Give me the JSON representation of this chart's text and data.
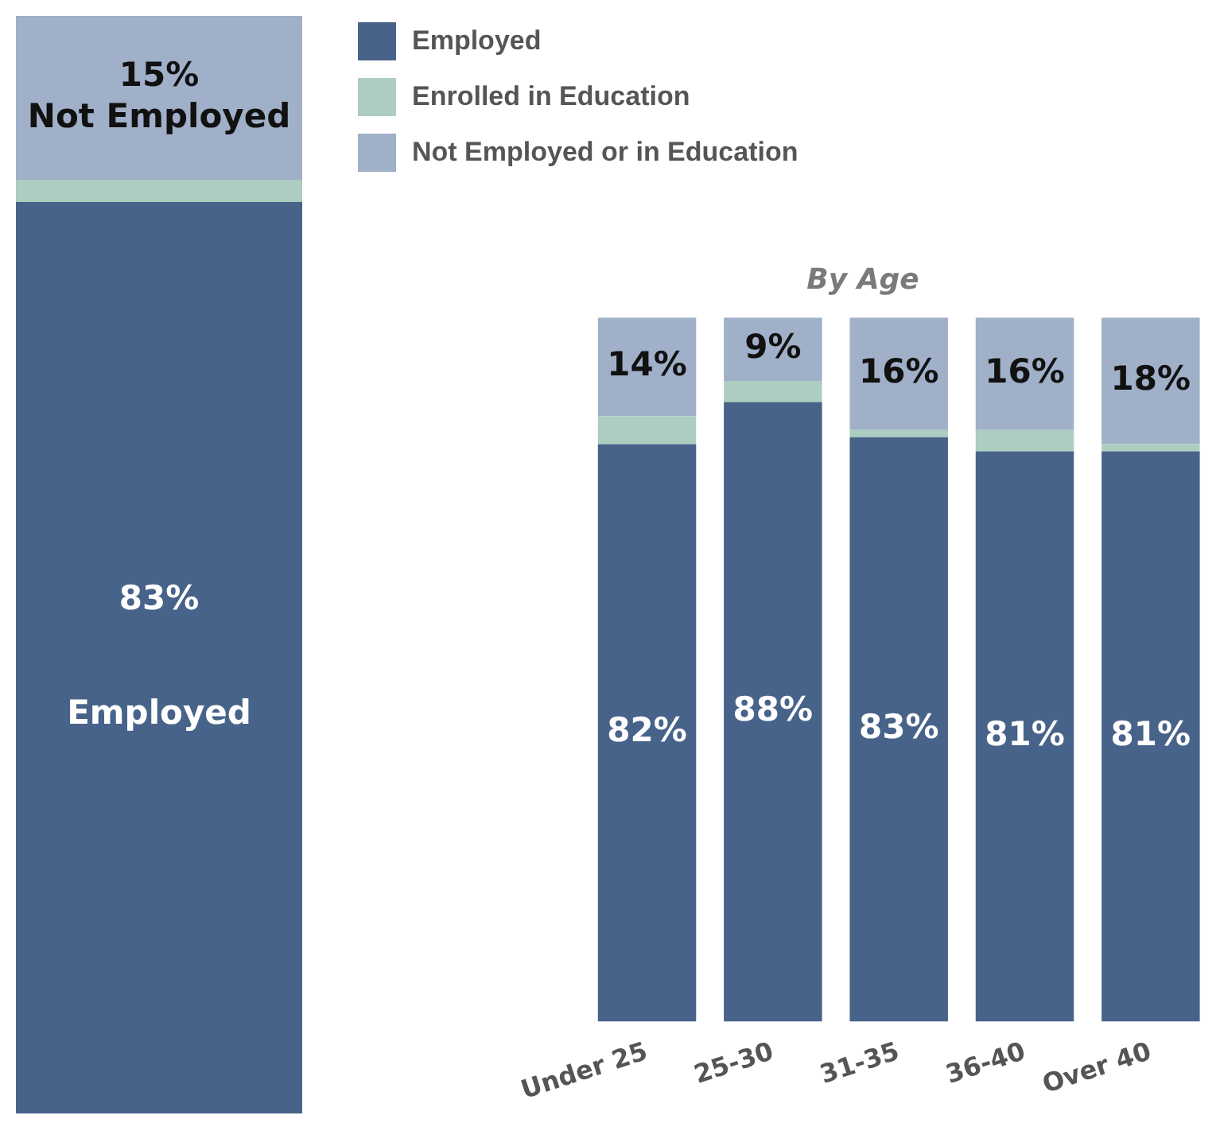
{
  "chart_data": [
    {
      "type": "bar",
      "stacked": true,
      "categories": [
        null
      ],
      "ylim": [
        0,
        100
      ],
      "tick_labels": false,
      "legend": "right",
      "series": [
        {
          "name": "Employed",
          "color": "#47638a",
          "values": [
            83
          ],
          "value_labels": [
            "83%\nEmployed"
          ]
        },
        {
          "name": "Enrolled in Education",
          "color": "#adcdc0",
          "values": [
            2
          ],
          "value_labels": [
            null
          ]
        },
        {
          "name": "Not Employed or in Education",
          "color": "#a0b0c8",
          "values": [
            15
          ],
          "value_labels": [
            "15%\nNot Employed"
          ]
        }
      ]
    },
    {
      "type": "bar",
      "stacked": true,
      "title": "By Age",
      "categories": [
        "Under 25",
        "25-30",
        "31-35",
        "36-40",
        "Over 40"
      ],
      "ylim": [
        0,
        100
      ],
      "tick_labels": "x",
      "series": [
        {
          "color": "#47638a",
          "values": [
            82,
            88,
            83,
            81,
            81
          ],
          "value_labels": [
            "82%",
            "88%",
            "83%",
            "81%",
            "81%"
          ]
        },
        {
          "color": "#adcdc0",
          "values": [
            4,
            3,
            1,
            3,
            1
          ],
          "value_labels": [
            null,
            null,
            null,
            null,
            null
          ]
        },
        {
          "color": "#a0b0c8",
          "values": [
            14,
            9,
            16,
            16,
            18
          ],
          "value_labels": [
            "14%",
            "9%",
            "16%",
            "16%",
            "18%"
          ]
        }
      ]
    }
  ]
}
